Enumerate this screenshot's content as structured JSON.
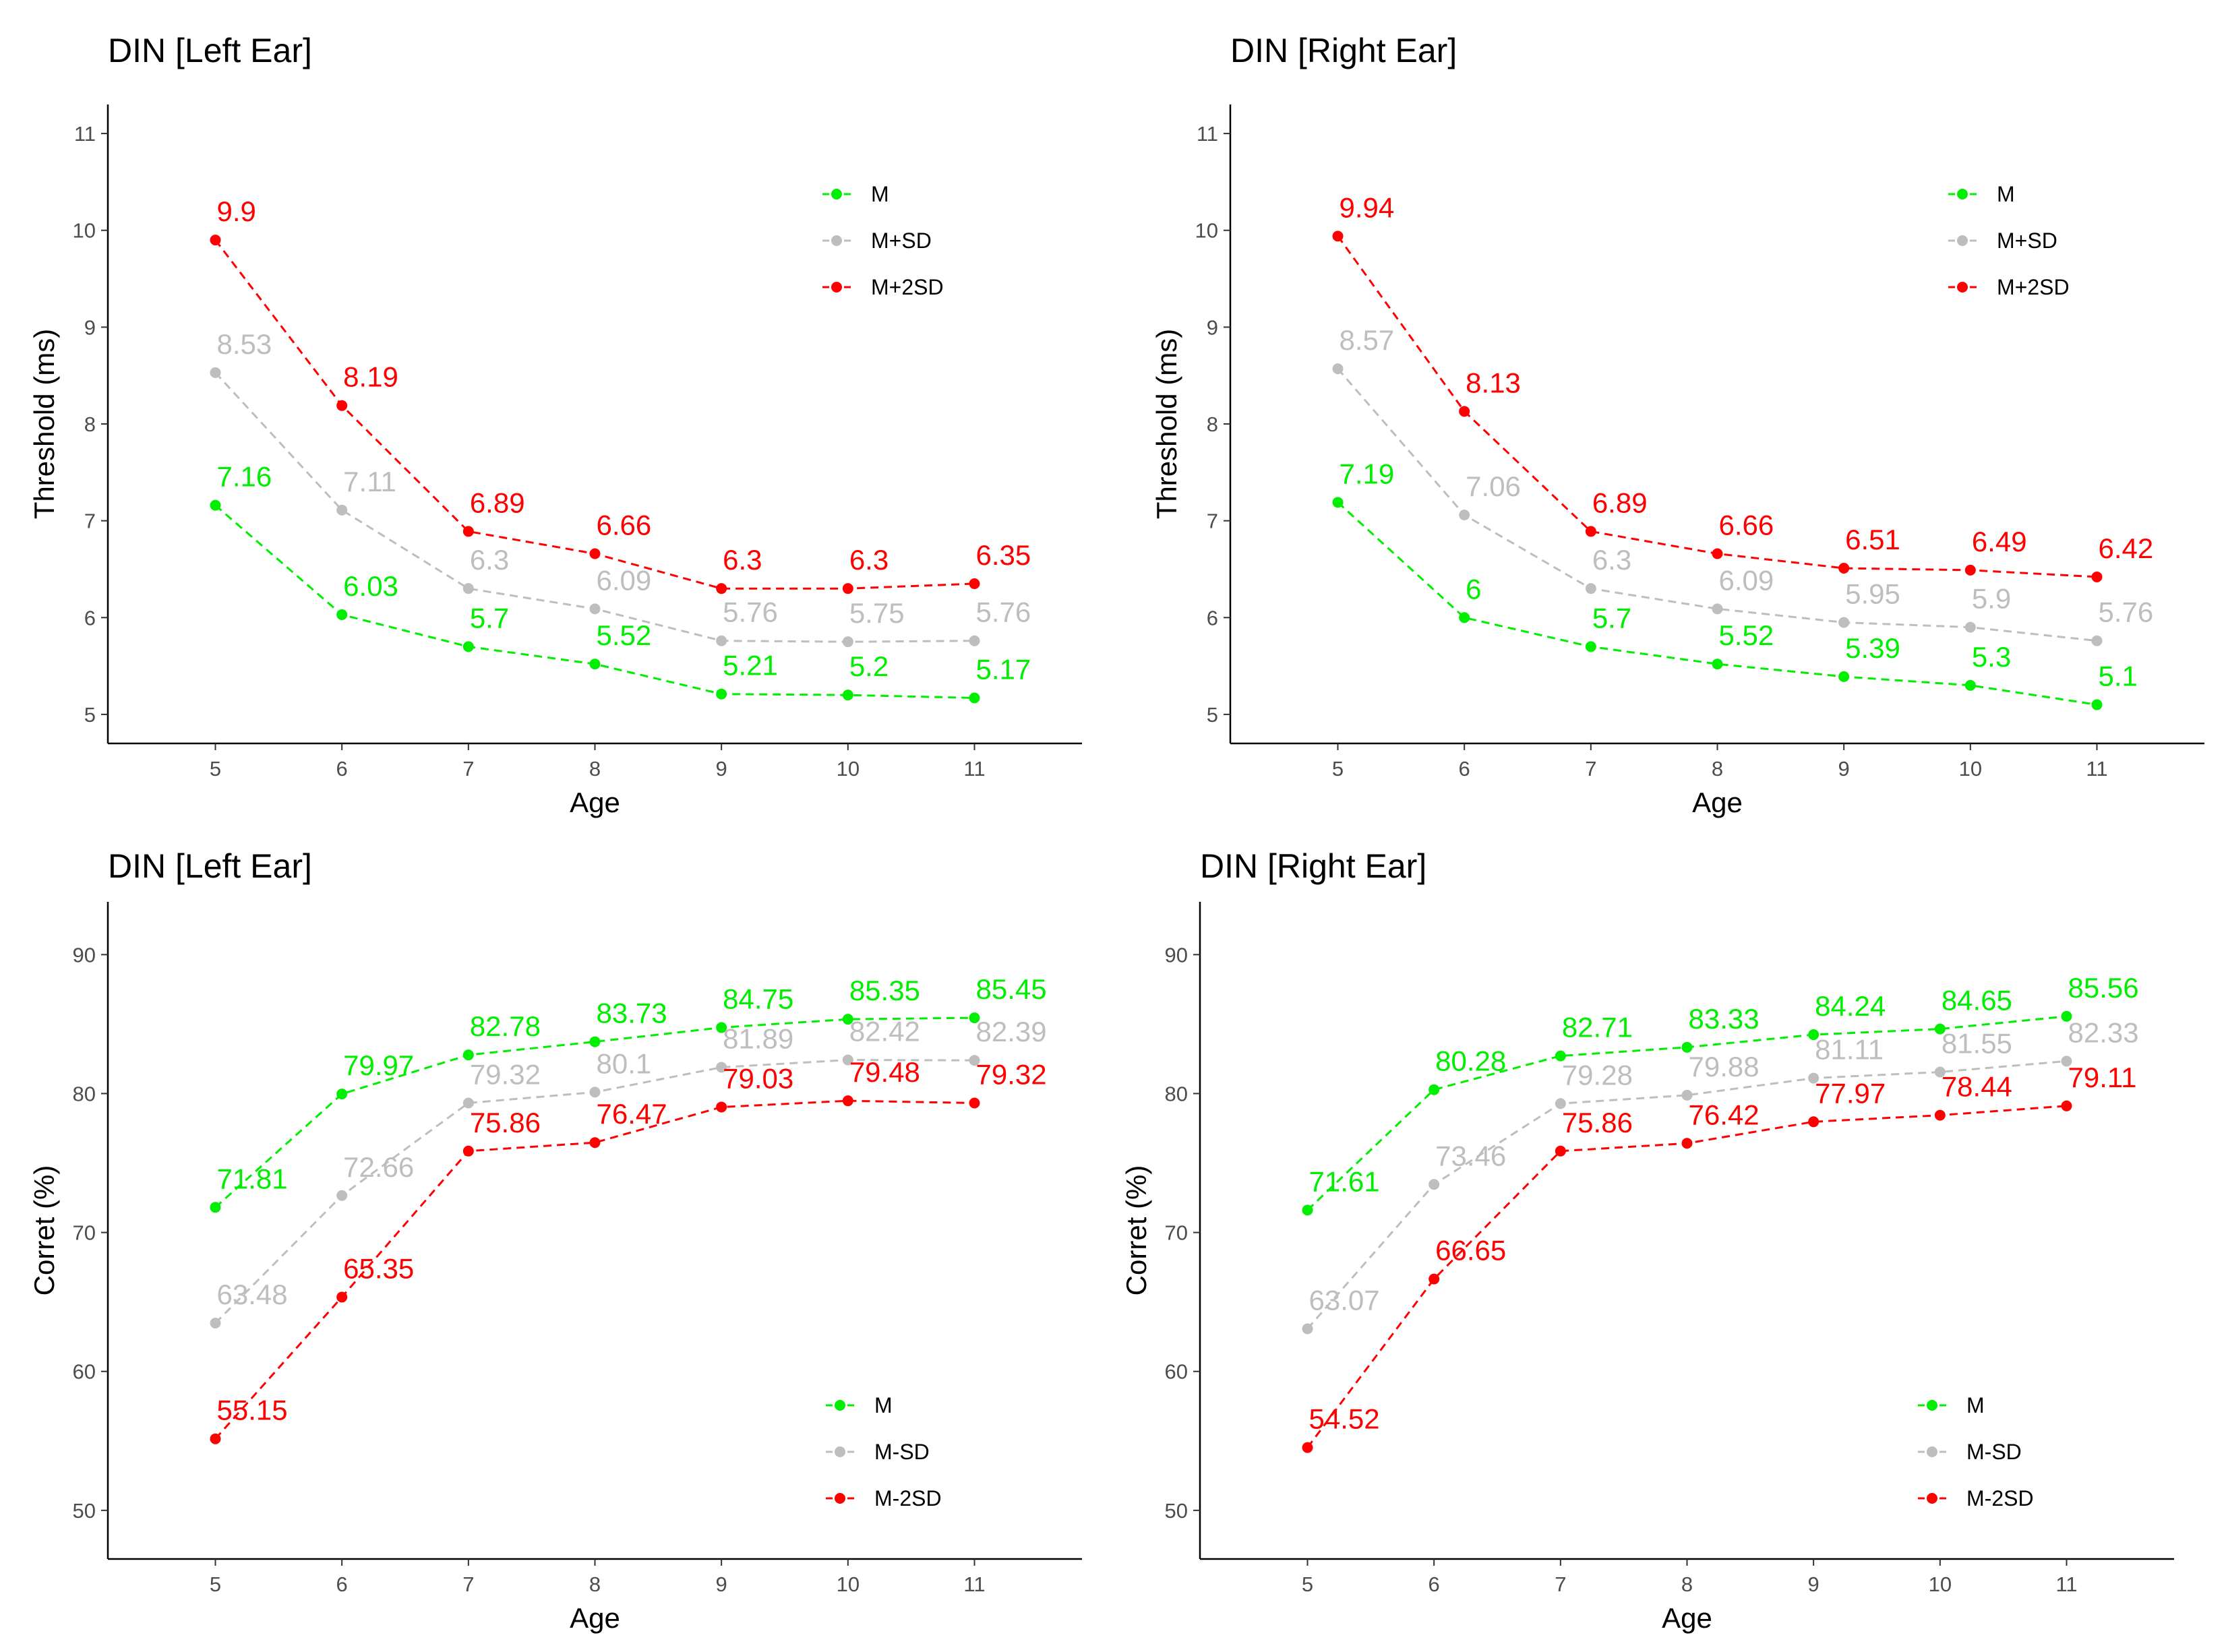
{
  "chart_data": [
    {
      "type": "line",
      "title": "DIN  [Left Ear]",
      "xlabel": "Age",
      "ylabel": "Threshold (ms)",
      "x": [
        5,
        6,
        7,
        8,
        9,
        10,
        11
      ],
      "xlim": [
        4.15,
        11.85
      ],
      "ylim": [
        4.7,
        11.3
      ],
      "yticks": [
        5,
        6,
        7,
        8,
        9,
        10,
        11
      ],
      "legend_position": "top-right",
      "series": [
        {
          "name": "M",
          "color": "#00ee00",
          "values": [
            7.16,
            6.03,
            5.7,
            5.52,
            5.21,
            5.2,
            5.17
          ],
          "labels": [
            "7.16",
            "6.03",
            "5.7",
            "5.52",
            "5.21",
            "5.2",
            "5.17"
          ]
        },
        {
          "name": "M+SD",
          "color": "#bebebe",
          "values": [
            8.53,
            7.11,
            6.3,
            6.09,
            5.76,
            5.75,
            5.76
          ],
          "labels": [
            "8.53",
            "7.11",
            "6.3",
            "6.09",
            "5.76",
            "5.75",
            "5.76"
          ]
        },
        {
          "name": "M+2SD",
          "color": "#ff0000",
          "values": [
            9.9,
            8.19,
            6.89,
            6.66,
            6.3,
            6.3,
            6.35
          ],
          "labels": [
            "9.9",
            "8.19",
            "6.89",
            "6.66",
            "6.3",
            "6.3",
            "6.35"
          ]
        }
      ]
    },
    {
      "type": "line",
      "title": "DIN  [Right Ear]",
      "xlabel": "Age",
      "ylabel": "Threshold (ms)",
      "x": [
        5,
        6,
        7,
        8,
        9,
        10,
        11
      ],
      "xlim": [
        4.15,
        11.85
      ],
      "ylim": [
        4.7,
        11.3
      ],
      "yticks": [
        5,
        6,
        7,
        8,
        9,
        10,
        11
      ],
      "legend_position": "top-right",
      "series": [
        {
          "name": "M",
          "color": "#00ee00",
          "values": [
            7.19,
            6,
            5.7,
            5.52,
            5.39,
            5.3,
            5.1
          ],
          "labels": [
            "7.19",
            "6",
            "5.7",
            "5.52",
            "5.39",
            "5.3",
            "5.1"
          ]
        },
        {
          "name": "M+SD",
          "color": "#bebebe",
          "values": [
            8.57,
            7.06,
            6.3,
            6.09,
            5.95,
            5.9,
            5.76
          ],
          "labels": [
            "8.57",
            "7.06",
            "6.3",
            "6.09",
            "5.95",
            "5.9",
            "5.76"
          ]
        },
        {
          "name": "M+2SD",
          "color": "#ff0000",
          "values": [
            9.94,
            8.13,
            6.89,
            6.66,
            6.51,
            6.49,
            6.42
          ],
          "labels": [
            "9.94",
            "8.13",
            "6.89",
            "6.66",
            "6.51",
            "6.49",
            "6.42"
          ]
        }
      ]
    },
    {
      "type": "line",
      "title": "DIN  [Left Ear]",
      "xlabel": "Age",
      "ylabel": "Corret (%)",
      "x": [
        5,
        6,
        7,
        8,
        9,
        10,
        11
      ],
      "xlim": [
        4.15,
        11.85
      ],
      "ylim": [
        46.5,
        93.8
      ],
      "yticks": [
        50,
        60,
        70,
        80,
        90
      ],
      "legend_position": "bottom-right",
      "series": [
        {
          "name": "M",
          "color": "#00ee00",
          "values": [
            71.81,
            79.97,
            82.78,
            83.73,
            84.75,
            85.35,
            85.45
          ],
          "labels": [
            "71.81",
            "79.97",
            "82.78",
            "83.73",
            "84.75",
            "85.35",
            "85.45"
          ]
        },
        {
          "name": "M-SD",
          "color": "#bebebe",
          "values": [
            63.48,
            72.66,
            79.32,
            80.1,
            81.89,
            82.42,
            82.39
          ],
          "labels": [
            "63.48",
            "72.66",
            "79.32",
            "80.1",
            "81.89",
            "82.42",
            "82.39"
          ]
        },
        {
          "name": "M-2SD",
          "color": "#ff0000",
          "values": [
            55.15,
            65.35,
            75.86,
            76.47,
            79.03,
            79.48,
            79.32
          ],
          "labels": [
            "55.15",
            "65.35",
            "75.86",
            "76.47",
            "79.03",
            "79.48",
            "79.32"
          ]
        }
      ]
    },
    {
      "type": "line",
      "title": "DIN  [Right Ear]",
      "xlabel": "Age",
      "ylabel": "Corret (%)",
      "x": [
        5,
        6,
        7,
        8,
        9,
        10,
        11
      ],
      "xlim": [
        4.15,
        11.85
      ],
      "ylim": [
        46.5,
        93.8
      ],
      "yticks": [
        50,
        60,
        70,
        80,
        90
      ],
      "legend_position": "bottom-right",
      "series": [
        {
          "name": "M",
          "color": "#00ee00",
          "values": [
            71.61,
            80.28,
            82.71,
            83.33,
            84.24,
            84.65,
            85.56
          ],
          "labels": [
            "71.61",
            "80.28",
            "82.71",
            "83.33",
            "84.24",
            "84.65",
            "85.56"
          ]
        },
        {
          "name": "M-SD",
          "color": "#bebebe",
          "values": [
            63.07,
            73.46,
            79.28,
            79.88,
            81.11,
            81.55,
            82.33
          ],
          "labels": [
            "63.07",
            "73.46",
            "79.28",
            "79.88",
            "81.11",
            "81.55",
            "82.33"
          ]
        },
        {
          "name": "M-2SD",
          "color": "#ff0000",
          "values": [
            54.52,
            66.65,
            75.86,
            76.42,
            77.97,
            78.44,
            79.11
          ],
          "labels": [
            "54.52",
            "66.65",
            "75.86",
            "76.42",
            "77.97",
            "78.44",
            "79.11"
          ]
        }
      ]
    }
  ]
}
